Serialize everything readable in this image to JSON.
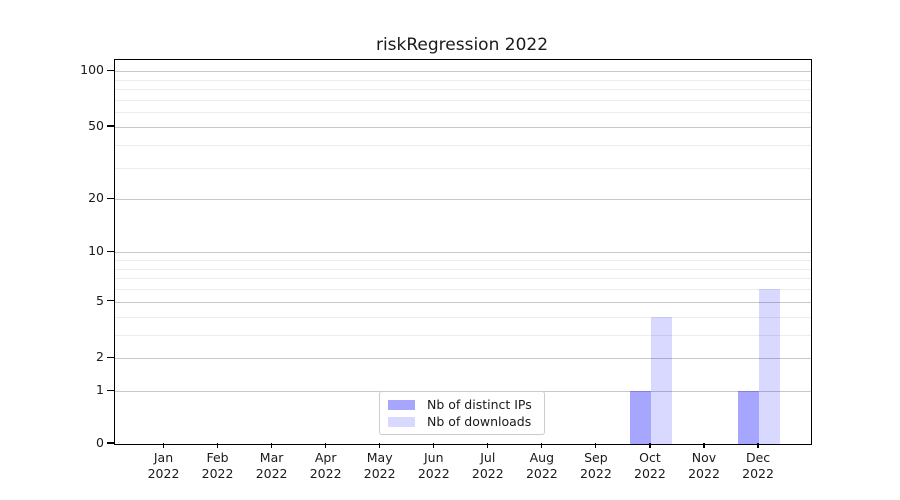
{
  "title": "riskRegression 2022",
  "chart_data": {
    "type": "bar",
    "title": "riskRegression 2022",
    "year_label": "2022",
    "categories": [
      "Jan",
      "Feb",
      "Mar",
      "Apr",
      "May",
      "Jun",
      "Jul",
      "Aug",
      "Sep",
      "Oct",
      "Nov",
      "Dec"
    ],
    "series": [
      {
        "name": "Nb of distinct IPs",
        "color": "rgba(0,0,255,0.35)",
        "values": [
          0,
          0,
          0,
          0,
          0,
          0,
          0,
          0,
          0,
          1,
          0,
          1
        ]
      },
      {
        "name": "Nb of downloads",
        "color": "rgba(0,0,255,0.15)",
        "values": [
          0,
          0,
          0,
          0,
          0,
          0,
          0,
          0,
          0,
          4,
          0,
          6
        ]
      }
    ],
    "y_ticks": [
      0,
      1,
      2,
      5,
      10,
      20,
      50,
      100
    ],
    "y_minor_gridlines": [
      3,
      4,
      6,
      7,
      8,
      9,
      30,
      40,
      60,
      70,
      80,
      90
    ],
    "y_scale": "log1p",
    "ylim": [
      0,
      100
    ],
    "xlabel": "",
    "ylabel": "",
    "grid": true,
    "legend_position": "lower center-left"
  },
  "colors": {
    "major_grid": "#c8c8c8",
    "minor_grid": "#ececec",
    "axis": "#000000",
    "text": "#1a1a1a",
    "background": "#ffffff",
    "legend_border": "#cccccc"
  }
}
